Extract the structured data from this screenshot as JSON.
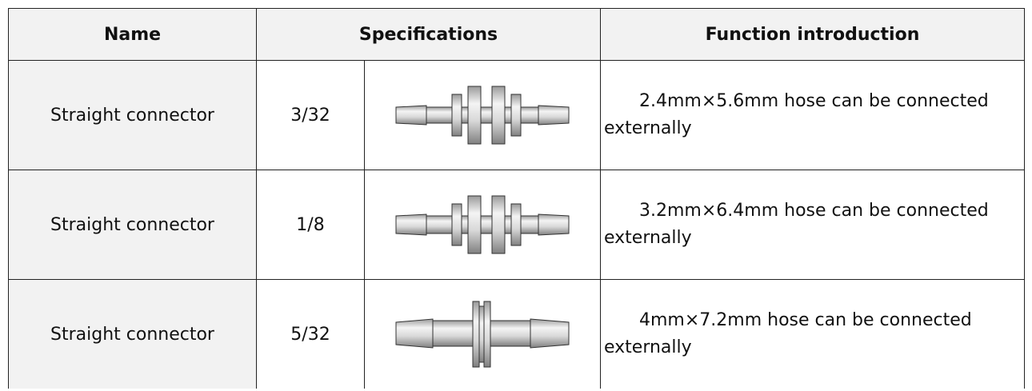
{
  "table": {
    "header": [
      "Name",
      "Specifications",
      "Function introduction"
    ],
    "rows": [
      {
        "name": "Straight connector",
        "spec": "3/32",
        "function": "2.4mm×5.6mm hose can be connected externally"
      },
      {
        "name": "Straight connector",
        "spec": "1/8",
        "function": "3.2mm×6.4mm hose can be connected externally"
      },
      {
        "name": "Straight connector",
        "spec": "5/32",
        "function": "4mm×7.2mm hose can be connected externally"
      }
    ]
  }
}
